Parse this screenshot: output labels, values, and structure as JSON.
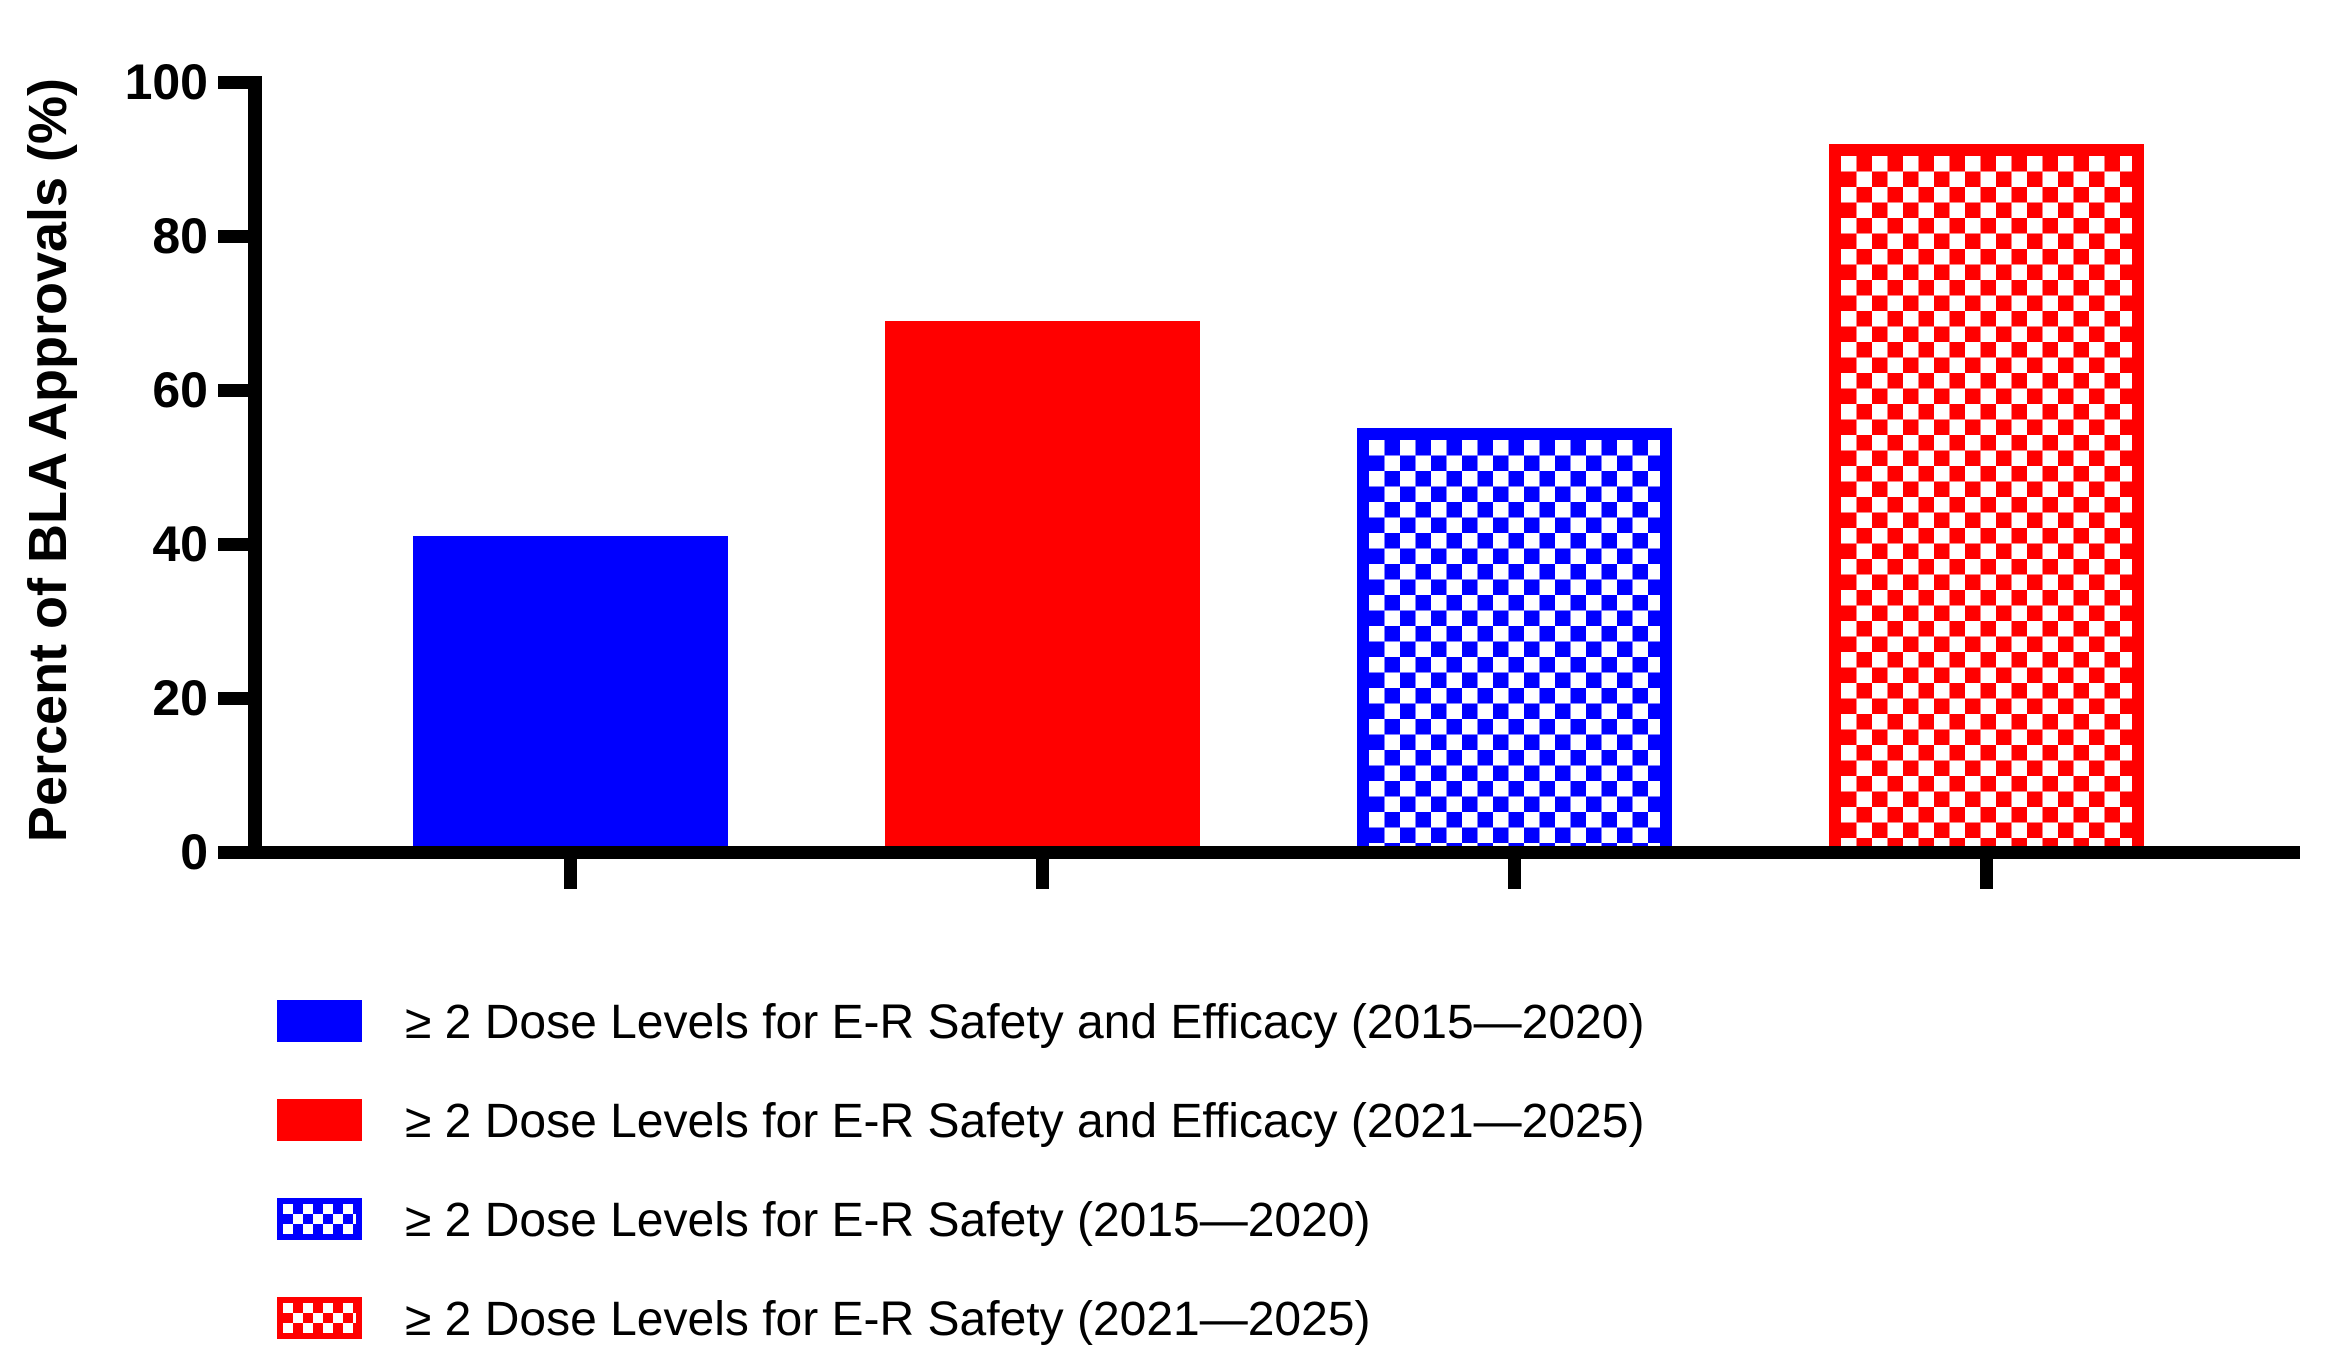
{
  "figure": {
    "background": "#ffffff",
    "axis_color": "#000000",
    "text_color": "#000000"
  },
  "chart_data": {
    "type": "bar",
    "title": "",
    "xlabel": "",
    "ylabel": "Percent of BLA Approvals (%)",
    "ylim": [
      0,
      100
    ],
    "y_ticks": [
      0,
      20,
      40,
      60,
      80,
      100
    ],
    "grid": false,
    "legend_position": "below-left",
    "series": [
      {
        "name": "≥ 2 Dose Levels for E-R Safety and Efficacy (2015—2020)",
        "value": 41,
        "color": "#0000ff",
        "pattern": "solid"
      },
      {
        "name": "≥ 2 Dose Levels for E-R Safety and Efficacy (2021—2025)",
        "value": 69,
        "color": "#ff0000",
        "pattern": "solid"
      },
      {
        "name": "≥ 2 Dose Levels for E-R Safety (2015—2020)",
        "value": 55,
        "color": "#0000ff",
        "pattern": "checker"
      },
      {
        "name": "≥ 2 Dose Levels for E-R Safety (2021—2025)",
        "value": 92,
        "color": "#ff0000",
        "pattern": "checker"
      }
    ]
  }
}
